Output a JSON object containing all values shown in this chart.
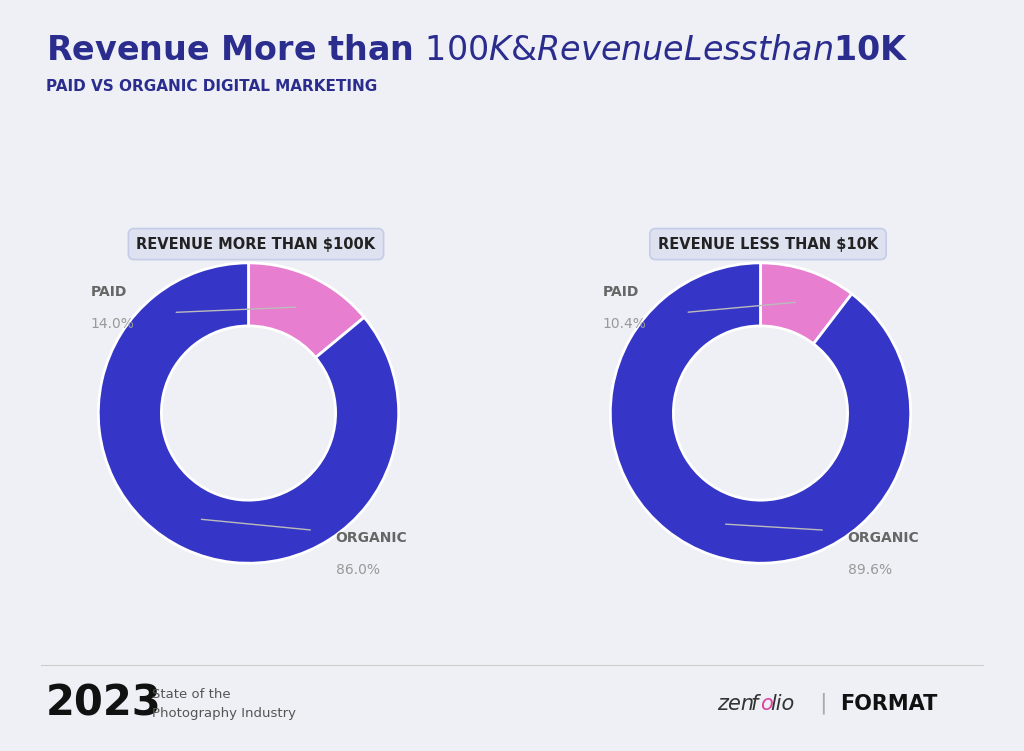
{
  "title": "Revenue More than $100K & Revenue Less than $10K",
  "subtitle": "PAID VS ORGANIC DIGITAL MARKETING",
  "background_color": "#eef0f5",
  "title_color": "#2b2d8e",
  "subtitle_color": "#2b2d8e",
  "charts": [
    {
      "label": "REVENUE MORE THAN $100K",
      "values": [
        14.0,
        86.0
      ],
      "categories": [
        "PAID",
        "ORGANIC"
      ],
      "percentages": [
        "14.0%",
        "86.0%"
      ],
      "colors": [
        "#e87ecf",
        "#3535c8"
      ],
      "startangle": 90
    },
    {
      "label": "REVENUE LESS THAN $10K",
      "values": [
        10.4,
        89.6
      ],
      "categories": [
        "PAID",
        "ORGANIC"
      ],
      "percentages": [
        "10.4%",
        "89.6%"
      ],
      "colors": [
        "#e87ecf",
        "#3535c8"
      ],
      "startangle": 90
    }
  ],
  "label_color": "#999999",
  "label_name_color": "#666666",
  "label_fontsize": 10,
  "pct_fontsize": 10,
  "donut_width": 0.42,
  "footer_year": "2023",
  "footer_text": "State of the\nPhotography Industry",
  "box_facecolor": "#dde1f0",
  "box_edgecolor": "#c5cce8"
}
